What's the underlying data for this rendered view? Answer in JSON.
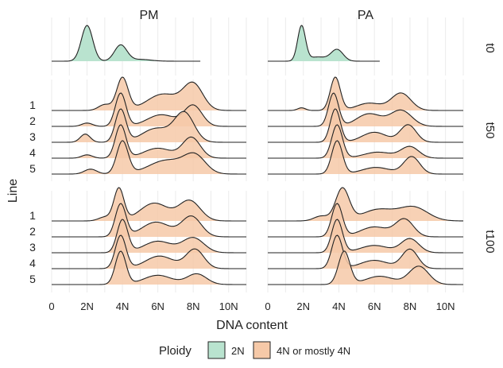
{
  "chart_data": {
    "type": "ridgeline",
    "xlabel": "DNA content",
    "ylabel": "Line",
    "xlim": [
      0,
      11
    ],
    "x_ticks": [
      0,
      2,
      4,
      6,
      8,
      10
    ],
    "x_tick_labels": [
      "0",
      "2N",
      "4N",
      "6N",
      "8N",
      "10N"
    ],
    "facet_columns": [
      "PM",
      "PA"
    ],
    "facet_rows": [
      "t0",
      "t50",
      "t100"
    ],
    "grid": true,
    "legend": {
      "title": "Ploidy",
      "position": "bottom",
      "entries": [
        {
          "label": "2N",
          "color": "#b9e3cf"
        },
        {
          "label": "4N or mostly 4N",
          "color": "#f6c9a8"
        }
      ]
    },
    "panels": [
      {
        "column": "PM",
        "row": "t0",
        "lines": [
          {
            "line": "",
            "ploidy": "2N",
            "x_range": [
              0,
              8.4
            ],
            "peaks": [
              [
                2.0,
                1.0,
                0.32
              ],
              [
                3.9,
                0.45,
                0.35
              ],
              [
                5.0,
                0.05,
                0.6
              ]
            ]
          }
        ]
      },
      {
        "column": "PA",
        "row": "t0",
        "lines": [
          {
            "line": "",
            "ploidy": "2N",
            "x_range": [
              0,
              6.3
            ],
            "peaks": [
              [
                1.9,
                1.0,
                0.22
              ],
              [
                3.9,
                0.33,
                0.34
              ],
              [
                2.8,
                0.12,
                0.5
              ]
            ]
          }
        ]
      },
      {
        "column": "PM",
        "row": "t50",
        "lines": [
          {
            "line": "1",
            "ploidy": "4N or mostly 4N",
            "x_range": [
              0,
              11
            ],
            "peaks": [
              [
                4.0,
                1.0,
                0.32
              ],
              [
                6.3,
                0.5,
                0.9
              ],
              [
                8.0,
                0.78,
                0.55
              ],
              [
                3.0,
                0.18,
                0.35
              ]
            ]
          },
          {
            "line": "2",
            "ploidy": "4N or mostly 4N",
            "x_range": [
              0,
              11
            ],
            "peaks": [
              [
                3.9,
                1.0,
                0.3
              ],
              [
                6.2,
                0.35,
                0.8
              ],
              [
                8.0,
                0.62,
                0.5
              ],
              [
                2.0,
                0.1,
                0.3
              ]
            ]
          },
          {
            "line": "3",
            "ploidy": "4N or mostly 4N",
            "x_range": [
              0,
              11
            ],
            "peaks": [
              [
                3.9,
                1.0,
                0.3
              ],
              [
                5.9,
                0.42,
                0.8
              ],
              [
                7.5,
                0.88,
                0.55
              ],
              [
                1.9,
                0.25,
                0.28
              ]
            ]
          },
          {
            "line": "4",
            "ploidy": "4N or mostly 4N",
            "x_range": [
              0,
              11
            ],
            "peaks": [
              [
                3.9,
                1.0,
                0.3
              ],
              [
                6.0,
                0.3,
                0.8
              ],
              [
                7.9,
                0.62,
                0.5
              ],
              [
                2.0,
                0.1,
                0.3
              ]
            ]
          },
          {
            "line": "5",
            "ploidy": "4N or mostly 4N",
            "x_range": [
              0,
              11
            ],
            "peaks": [
              [
                4.0,
                1.0,
                0.32
              ],
              [
                6.5,
                0.42,
                1.0
              ],
              [
                8.1,
                0.52,
                0.6
              ],
              [
                2.2,
                0.15,
                0.35
              ]
            ]
          }
        ]
      },
      {
        "column": "PA",
        "row": "t50",
        "lines": [
          {
            "line": "1",
            "ploidy": "4N or mostly 4N",
            "x_range": [
              0,
              11
            ],
            "peaks": [
              [
                3.8,
                1.0,
                0.28
              ],
              [
                5.7,
                0.22,
                0.7
              ],
              [
                7.5,
                0.52,
                0.55
              ],
              [
                1.9,
                0.08,
                0.22
              ]
            ]
          },
          {
            "line": "2",
            "ploidy": "4N or mostly 4N",
            "x_range": [
              0,
              11
            ],
            "peaks": [
              [
                3.7,
                1.0,
                0.28
              ],
              [
                5.7,
                0.38,
                0.7
              ],
              [
                7.5,
                0.48,
                0.6
              ]
            ]
          },
          {
            "line": "3",
            "ploidy": "4N or mostly 4N",
            "x_range": [
              0,
              11
            ],
            "peaks": [
              [
                3.8,
                1.0,
                0.28
              ],
              [
                6.0,
                0.3,
                0.7
              ],
              [
                7.9,
                0.52,
                0.45
              ]
            ]
          },
          {
            "line": "4",
            "ploidy": "4N or mostly 4N",
            "x_range": [
              0,
              11
            ],
            "peaks": [
              [
                3.9,
                1.0,
                0.3
              ],
              [
                6.2,
                0.18,
                0.8
              ],
              [
                8.0,
                0.34,
                0.5
              ]
            ]
          },
          {
            "line": "5",
            "ploidy": "4N or mostly 4N",
            "x_range": [
              0,
              11
            ],
            "peaks": [
              [
                3.9,
                1.0,
                0.3
              ],
              [
                6.1,
                0.2,
                0.8
              ],
              [
                8.1,
                0.52,
                0.45
              ]
            ]
          }
        ]
      },
      {
        "column": "PM",
        "row": "t100",
        "lines": [
          {
            "line": "1",
            "ploidy": "4N or mostly 4N",
            "x_range": [
              0,
              11
            ],
            "peaks": [
              [
                3.8,
                1.0,
                0.28
              ],
              [
                5.8,
                0.55,
                0.8
              ],
              [
                7.8,
                0.62,
                0.6
              ],
              [
                3.0,
                0.12,
                0.35
              ]
            ]
          },
          {
            "line": "2",
            "ploidy": "4N or mostly 4N",
            "x_range": [
              0,
              11
            ],
            "peaks": [
              [
                3.9,
                1.0,
                0.3
              ],
              [
                5.9,
                0.45,
                0.8
              ],
              [
                7.9,
                0.62,
                0.55
              ]
            ]
          },
          {
            "line": "3",
            "ploidy": "4N or mostly 4N",
            "x_range": [
              0,
              11
            ],
            "peaks": [
              [
                4.0,
                1.0,
                0.3
              ],
              [
                6.0,
                0.35,
                0.8
              ],
              [
                8.0,
                0.45,
                0.6
              ]
            ]
          },
          {
            "line": "4",
            "ploidy": "4N or mostly 4N",
            "x_range": [
              0,
              11
            ],
            "peaks": [
              [
                3.9,
                1.0,
                0.3
              ],
              [
                6.1,
                0.38,
                0.8
              ],
              [
                8.1,
                0.58,
                0.5
              ]
            ]
          },
          {
            "line": "5",
            "ploidy": "4N or mostly 4N",
            "x_range": [
              0,
              11
            ],
            "peaks": [
              [
                3.9,
                1.0,
                0.3
              ],
              [
                6.0,
                0.28,
                0.8
              ],
              [
                8.2,
                0.32,
                0.55
              ]
            ]
          }
        ]
      },
      {
        "column": "PA",
        "row": "t100",
        "lines": [
          {
            "line": "1",
            "ploidy": "4N or mostly 4N",
            "x_range": [
              0,
              11
            ],
            "peaks": [
              [
                4.2,
                1.0,
                0.38
              ],
              [
                6.2,
                0.35,
                0.9
              ],
              [
                8.2,
                0.42,
                0.8
              ],
              [
                3.0,
                0.15,
                0.4
              ]
            ]
          },
          {
            "line": "2",
            "ploidy": "4N or mostly 4N",
            "x_range": [
              0,
              11
            ],
            "peaks": [
              [
                3.9,
                1.0,
                0.3
              ],
              [
                6.0,
                0.3,
                0.8
              ],
              [
                7.7,
                0.52,
                0.5
              ]
            ]
          },
          {
            "line": "3",
            "ploidy": "4N or mostly 4N",
            "x_range": [
              0,
              11
            ],
            "peaks": [
              [
                3.9,
                1.0,
                0.3
              ],
              [
                6.0,
                0.22,
                0.8
              ],
              [
                8.0,
                0.42,
                0.5
              ]
            ]
          },
          {
            "line": "4",
            "ploidy": "4N or mostly 4N",
            "x_range": [
              0,
              11
            ],
            "peaks": [
              [
                3.9,
                1.0,
                0.3
              ],
              [
                6.0,
                0.25,
                0.8
              ],
              [
                8.0,
                0.58,
                0.45
              ]
            ]
          },
          {
            "line": "5",
            "ploidy": "4N or mostly 4N",
            "x_range": [
              0,
              11
            ],
            "peaks": [
              [
                4.3,
                1.0,
                0.32
              ],
              [
                6.3,
                0.25,
                0.8
              ],
              [
                8.5,
                0.55,
                0.55
              ]
            ]
          }
        ]
      }
    ]
  }
}
